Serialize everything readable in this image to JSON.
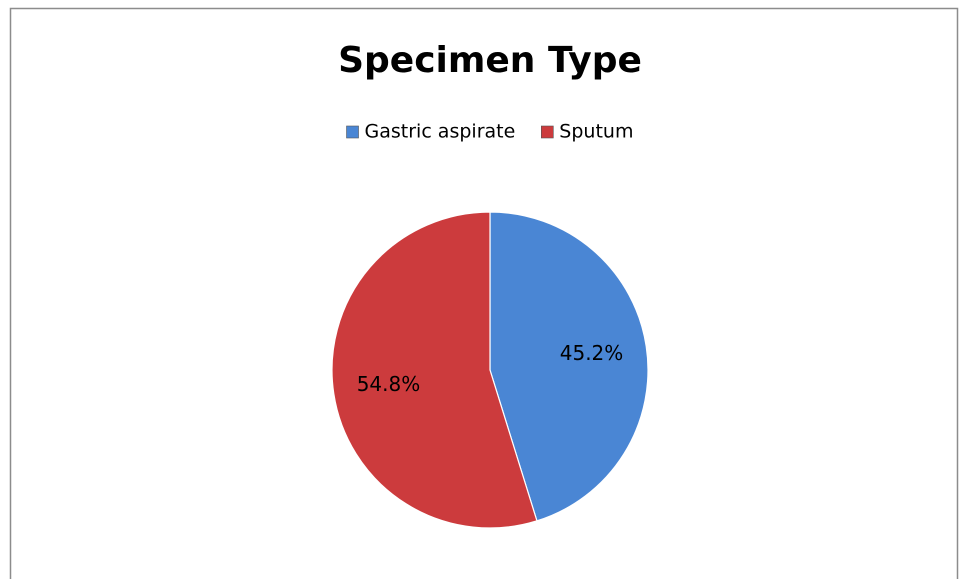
{
  "chart_data": {
    "type": "pie",
    "title": "Specimen Type",
    "categories": [
      "Gastric aspirate",
      "Sputum"
    ],
    "values": [
      45.2,
      54.8
    ],
    "value_labels": [
      "45.2%",
      "54.8%"
    ],
    "colors": [
      "#4a86d4",
      "#cc3b3d"
    ],
    "legend": "top"
  }
}
